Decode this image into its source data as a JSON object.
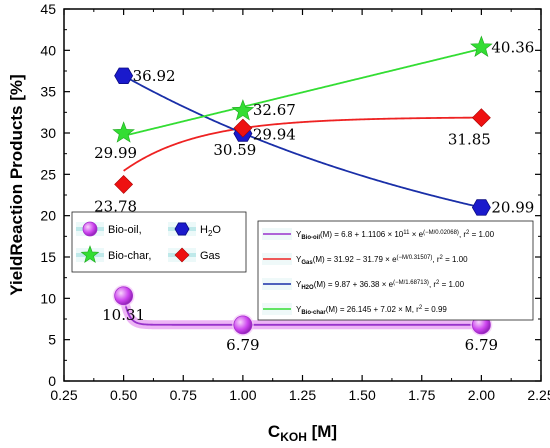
{
  "chart_data": {
    "type": "line",
    "xlabel": "C",
    "xlabel_sub": "KOH",
    "xlabel_unit": " [M]",
    "ylabel": "YieldReaction Products [%]",
    "xlim": [
      0.25,
      2.25
    ],
    "ylim": [
      0,
      45
    ],
    "x_ticks": [
      "0.25",
      "0.50",
      "0.75",
      "1.00",
      "1.25",
      "1.50",
      "1.75",
      "2.00",
      "2.25"
    ],
    "y_ticks": [
      "0",
      "5",
      "10",
      "15",
      "20",
      "25",
      "30",
      "35",
      "40",
      "45"
    ],
    "x": [
      0.5,
      1.0,
      2.0
    ],
    "series": [
      {
        "name": "Bio-oil,",
        "key": "biooil",
        "marker": "circle",
        "color": "#cc44ee",
        "line_color": "#9933cc",
        "values": [
          10.31,
          6.79,
          6.79
        ],
        "labels": [
          "10.31",
          "6.79",
          "6.79"
        ]
      },
      {
        "name": "H2O",
        "key": "h2o",
        "marker": "hexagon",
        "color": "#1a1acc",
        "line_color": "#1a2fa8",
        "values": [
          36.92,
          29.94,
          20.99
        ],
        "labels": [
          "36.92",
          "29.94",
          "20.99"
        ]
      },
      {
        "name": "Bio-char,",
        "key": "biochar",
        "marker": "star",
        "color": "#33dd33",
        "line_color": "#33dd33",
        "values": [
          29.99,
          32.67,
          40.36
        ],
        "labels": [
          "29.99",
          "32.67",
          "40.36"
        ]
      },
      {
        "name": "Gas",
        "key": "gas",
        "marker": "diamond",
        "color": "#ee1111",
        "line_color": "#ee2222",
        "values": [
          23.78,
          30.59,
          31.85
        ],
        "labels": [
          "23.78",
          "30.59",
          "31.85"
        ]
      }
    ],
    "fits": [
      {
        "key": "biooil",
        "color": "#9933cc",
        "a": 6.8,
        "b": 111060000000.0,
        "c": 0.02068,
        "type": "exp"
      },
      {
        "key": "gas",
        "color": "#ee2222",
        "a": 31.92,
        "b": -31.79,
        "c": 0.31507,
        "type": "exp"
      },
      {
        "key": "h2o",
        "color": "#1a2fa8",
        "a": 9.87,
        "b": 36.38,
        "c": 1.68713,
        "type": "exp"
      },
      {
        "key": "biochar",
        "color": "#33dd33",
        "a": 26.145,
        "b": 7.02,
        "type": "linear"
      }
    ],
    "legend": {
      "placement": "center-left",
      "items": [
        {
          "label": "Bio-oil,",
          "key": "biooil"
        },
        {
          "label": "H",
          "sub": "2",
          "tail": "O",
          "key": "h2o"
        },
        {
          "label": "Bio-char,",
          "key": "biochar"
        },
        {
          "label": "Gas",
          "key": "gas"
        }
      ]
    },
    "equations": [
      {
        "color": "#9933cc",
        "y": "Y",
        "ysub": "Bio-oil",
        "rest": "(M) = 6.8 + 1.1106 × 10",
        "sup1": "11",
        "rest2": " × e",
        "sup2": "(−M/0.02068)",
        "rest3": ", r",
        "sup3": "2",
        "rest4": " = 1.00"
      },
      {
        "color": "#ee2222",
        "y": "Y",
        "ysub": "Gas",
        "rest": "(M) = 31.92 − 31.79 × e",
        "sup1": "(−M/0.31507)",
        "rest2": ", r",
        "sup2": "2",
        "rest3": " = 1.00"
      },
      {
        "color": "#1a2fa8",
        "y": "Y",
        "ysub": "H2O",
        "rest": "(M) = 9.87 + 36.38 × e",
        "sup1": "(−M/1.68713)",
        "rest2": ", r",
        "sup2": "2",
        "rest3": " = 1.00"
      },
      {
        "color": "#33dd33",
        "y": "Y",
        "ysub": "Bio-char",
        "rest": "(M) = 26.145 + 7.02 × M, r",
        "sup1": "2",
        "rest2": " = 0.99"
      }
    ]
  }
}
